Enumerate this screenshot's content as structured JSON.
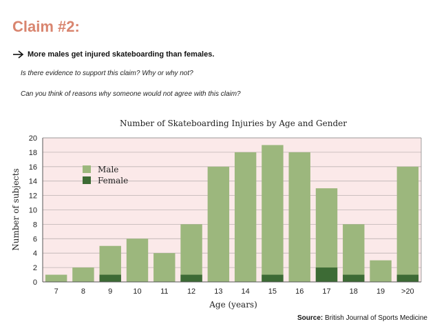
{
  "header": {
    "claim_title": "Claim #2:",
    "claim_text": "More males get injured skateboarding than females.",
    "question_1": "Is there evidence to support this claim? Why or why not?",
    "question_2": "Can you think of reasons why someone would not agree with this claim?"
  },
  "source": {
    "label": "Source:",
    "text": "British Journal of Sports Medicine"
  },
  "colors": {
    "title_accent": "#d9856f",
    "plot_background": "#fbe9e9",
    "male": "#9cb77d",
    "female": "#3d6b35"
  },
  "chart_data": {
    "type": "bar",
    "title": "Number of Skateboarding Injuries by Age and Gender",
    "xlabel": "Age (years)",
    "ylabel": "Number of subjects",
    "categories": [
      "7",
      "8",
      "9",
      "10",
      "11",
      "12",
      "13",
      "14",
      "15",
      "16",
      "17",
      "18",
      "19",
      ">20"
    ],
    "ylim": [
      0,
      20
    ],
    "yticks": [
      0,
      2,
      4,
      6,
      8,
      10,
      12,
      14,
      16,
      18,
      20
    ],
    "grid": true,
    "legend": "top-left",
    "series": [
      {
        "name": "Male",
        "color": "#9cb77d",
        "values": [
          1,
          2,
          5,
          6,
          4,
          8,
          16,
          18,
          19,
          18,
          13,
          8,
          3,
          16
        ]
      },
      {
        "name": "Female",
        "color": "#3d6b35",
        "values": [
          0,
          0,
          1,
          0,
          0,
          1,
          0,
          0,
          1,
          0,
          2,
          1,
          0,
          1
        ]
      }
    ]
  }
}
